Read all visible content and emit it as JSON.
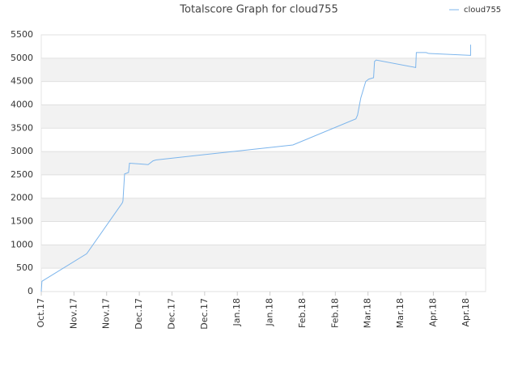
{
  "chart_data": {
    "type": "line",
    "title": "Totalscore Graph for cloud755",
    "x": [
      0,
      0.02,
      1.39,
      2.48,
      2.5,
      2.55,
      2.67,
      2.7,
      3.09,
      3.27,
      3.42,
      3.51,
      6.91,
      7.7,
      9.63,
      9.68,
      9.78,
      9.93,
      10.02,
      10.17,
      10.2,
      10.25,
      11.46,
      11.48,
      11.78,
      11.86,
      13.14,
      13.14
    ],
    "series": [
      {
        "name": "cloud755",
        "color": "#7cb5ec",
        "values": [
          0,
          220,
          810,
          1900,
          1940,
          2520,
          2550,
          2750,
          2730,
          2720,
          2800,
          2820,
          3080,
          3140,
          3700,
          3780,
          4150,
          4500,
          4550,
          4580,
          4930,
          4960,
          4800,
          5120,
          5120,
          5100,
          5060,
          5290
        ]
      }
    ],
    "xlim": [
      0,
      13.6
    ],
    "xticks": [
      {
        "value": 0,
        "label": "Oct.17"
      },
      {
        "value": 1,
        "label": "Nov.17"
      },
      {
        "value": 2,
        "label": "Nov.17"
      },
      {
        "value": 3,
        "label": "Dec.17"
      },
      {
        "value": 4,
        "label": "Dec.17"
      },
      {
        "value": 5,
        "label": "Dec.17"
      },
      {
        "value": 6,
        "label": "Jan.18"
      },
      {
        "value": 7,
        "label": "Jan.18"
      },
      {
        "value": 8,
        "label": "Feb.18"
      },
      {
        "value": 9,
        "label": "Feb.18"
      },
      {
        "value": 10,
        "label": "Mar.18"
      },
      {
        "value": 11,
        "label": "Mar.18"
      },
      {
        "value": 12,
        "label": "Apr.18"
      },
      {
        "value": 13,
        "label": "Apr.18"
      }
    ],
    "ylim": [
      0,
      5500
    ],
    "yticks": [
      0,
      500,
      1000,
      1500,
      2000,
      2500,
      3000,
      3500,
      4000,
      4500,
      5000,
      5500
    ],
    "grid": true,
    "legend": "top-right"
  }
}
